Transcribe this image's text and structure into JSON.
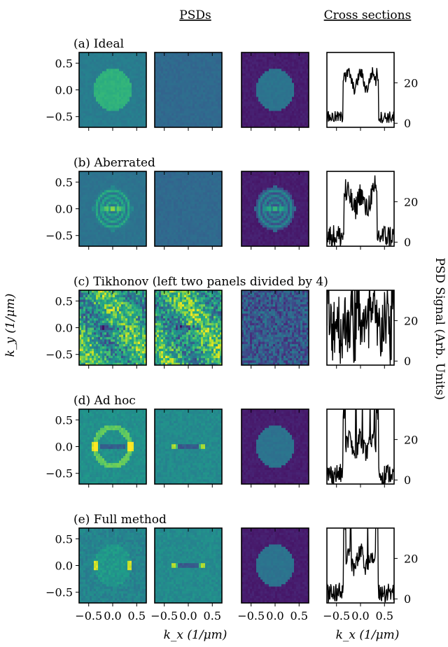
{
  "figure": {
    "header_psds": "PSDs",
    "header_cross": "Cross sections",
    "ylabel": "k_y (1/μm)",
    "xlabel_psd": "k_x (1/μm)",
    "xlabel_cross": "k_x (1/μm)",
    "ylabel_right": "PSD Signal (Arb. Units)"
  },
  "chart_data": {
    "type": "heatmap",
    "colormap": "viridis",
    "grid": false,
    "x_axis": {
      "ticks": [
        -0.5,
        0.0,
        0.5
      ],
      "tick_labels": [
        "−0.5",
        "0.0",
        "0.5"
      ],
      "range": [
        -0.7,
        0.7
      ]
    },
    "y_axis": {
      "ticks": [
        0.5,
        0.0,
        -0.5
      ],
      "tick_labels": [
        "0.5",
        "0.0",
        "−0.5"
      ],
      "range": [
        -0.7,
        0.7
      ]
    },
    "cross_section_axis": {
      "ticks": [
        20,
        0
      ],
      "tick_labels": [
        "20",
        "0"
      ],
      "range": [
        -2,
        35
      ]
    },
    "rows": [
      {
        "label": "(a) Ideal",
        "panels": [
          {
            "pattern": "disk",
            "brightness": "medium-bright",
            "radius": 0.4
          },
          {
            "pattern": "uniform",
            "brightness": "low"
          },
          {
            "pattern": "disk",
            "brightness": "medium",
            "radius": 0.4,
            "background": "dark"
          }
        ],
        "cross_section": {
          "baseline": 3,
          "plateau": 21,
          "edge": 0.37,
          "noise": 3,
          "clip": false
        }
      },
      {
        "label": "(b) Aberrated",
        "panels": [
          {
            "pattern": "disk-fringes",
            "brightness": "medium",
            "radius": 0.4
          },
          {
            "pattern": "uniform",
            "brightness": "low"
          },
          {
            "pattern": "disk-fringes",
            "brightness": "medium",
            "radius": 0.4,
            "background": "dark"
          }
        ],
        "cross_section": {
          "baseline": 3,
          "plateau": 20,
          "edge": 0.35,
          "noise": 6,
          "clip": false
        }
      },
      {
        "label": "(c) Tikhonov (left two panels divided by 4)",
        "panels": [
          {
            "pattern": "bright-noise",
            "brightness": "high"
          },
          {
            "pattern": "bright-noise",
            "brightness": "high"
          },
          {
            "pattern": "streaky-noise",
            "brightness": "low",
            "background": "dark"
          }
        ],
        "cross_section": {
          "baseline": 18,
          "plateau": 18,
          "edge": 0.7,
          "noise": 18,
          "clip": true
        }
      },
      {
        "label": "(d) Ad hoc",
        "panels": [
          {
            "pattern": "ring-with-bar",
            "brightness": "medium"
          },
          {
            "pattern": "bar",
            "brightness": "medium"
          },
          {
            "pattern": "disk",
            "brightness": "low",
            "radius": 0.4,
            "background": "dark"
          }
        ],
        "cross_section": {
          "baseline": 3,
          "plateau": 17,
          "edge": 0.37,
          "noise": 5,
          "clip": true
        }
      },
      {
        "label": "(e) Full method",
        "panels": [
          {
            "pattern": "faint-disk-with-spots",
            "brightness": "medium"
          },
          {
            "pattern": "bar",
            "brightness": "medium"
          },
          {
            "pattern": "disk",
            "brightness": "low",
            "radius": 0.4,
            "background": "dark"
          }
        ],
        "cross_section": {
          "baseline": 3,
          "plateau": 19,
          "edge": 0.36,
          "noise": 5,
          "clip": true
        }
      }
    ]
  }
}
